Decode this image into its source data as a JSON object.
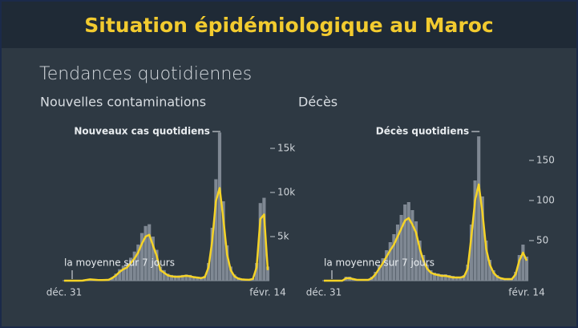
{
  "header": {
    "title": "Situation épidémiologique au Maroc"
  },
  "subtitle": "Tendances quotidiennes",
  "chart_data": [
    {
      "type": "bar-line",
      "title": "Nouvelles contaminations",
      "categories": [
        "déc. 31",
        null,
        null,
        null,
        null,
        null,
        null,
        null,
        null,
        null,
        null,
        null,
        null,
        null,
        null,
        null,
        null,
        null,
        null,
        null,
        null,
        null,
        null,
        null,
        null,
        null,
        null,
        null,
        null,
        null,
        null,
        null,
        null,
        null,
        null,
        null,
        null,
        null,
        null,
        null,
        null,
        null,
        null,
        null,
        null,
        null,
        null,
        null,
        null,
        null,
        null,
        null,
        null,
        null,
        null,
        "févr. 14"
      ],
      "series": [
        {
          "name": "Nouveaux cas quotidiens",
          "type": "bar",
          "color": "#7f8893",
          "values": [
            0,
            0,
            0,
            0,
            0,
            20,
            120,
            200,
            170,
            110,
            90,
            120,
            150,
            400,
            800,
            1300,
            1700,
            2000,
            2600,
            3300,
            4100,
            5400,
            6200,
            6400,
            5000,
            3500,
            1600,
            1200,
            800,
            650,
            600,
            600,
            650,
            700,
            650,
            520,
            450,
            400,
            550,
            2000,
            6000,
            11500,
            16800,
            9000,
            4000,
            1600,
            700,
            350,
            200,
            160,
            140,
            280,
            2000,
            8800,
            9400,
            1600
          ]
        },
        {
          "name": "la moyenne sur 7 jours",
          "type": "line",
          "color": "#f5d327",
          "values": [
            0,
            0,
            0,
            0,
            0,
            10,
            80,
            150,
            120,
            80,
            60,
            80,
            100,
            300,
            600,
            1000,
            1300,
            1500,
            2000,
            2500,
            3200,
            4200,
            5000,
            5200,
            4000,
            2800,
            1200,
            900,
            600,
            500,
            450,
            450,
            500,
            550,
            500,
            400,
            350,
            300,
            400,
            1500,
            4500,
            9000,
            10500,
            7000,
            3000,
            1200,
            500,
            250,
            150,
            120,
            100,
            200,
            1500,
            7000,
            7500,
            1200
          ]
        }
      ],
      "ylim": [
        0,
        17000
      ],
      "yticks": [
        {
          "value": 5000,
          "label": "5k"
        },
        {
          "value": 10000,
          "label": "10k"
        },
        {
          "value": 15000,
          "label": "15k"
        }
      ]
    },
    {
      "type": "bar-line",
      "title": "Décès",
      "categories": [
        "déc. 31",
        null,
        null,
        null,
        null,
        null,
        null,
        null,
        null,
        null,
        null,
        null,
        null,
        null,
        null,
        null,
        null,
        null,
        null,
        null,
        null,
        null,
        null,
        null,
        null,
        null,
        null,
        null,
        null,
        null,
        null,
        null,
        null,
        null,
        null,
        null,
        null,
        null,
        null,
        null,
        null,
        null,
        null,
        null,
        null,
        null,
        null,
        null,
        null,
        null,
        null,
        null,
        null,
        null,
        null,
        "févr. 14"
      ],
      "series": [
        {
          "name": "Décès quotidiens",
          "type": "bar",
          "color": "#7f8893",
          "values": [
            0,
            0,
            0,
            0,
            0,
            1,
            5,
            5,
            3,
            2,
            2,
            2,
            2,
            5,
            11,
            19,
            28,
            38,
            48,
            58,
            70,
            82,
            95,
            98,
            88,
            74,
            50,
            32,
            20,
            13,
            10,
            9,
            8,
            8,
            7,
            6,
            5,
            5,
            7,
            20,
            70,
            125,
            180,
            105,
            50,
            26,
            13,
            7,
            4,
            3,
            3,
            3,
            11,
            32,
            45,
            30
          ]
        },
        {
          "name": "la moyenne sur 7 jours",
          "type": "line",
          "color": "#f5d327",
          "values": [
            0,
            0,
            0,
            0,
            0,
            0,
            3,
            3,
            2,
            1,
            1,
            1,
            1,
            3,
            8,
            15,
            22,
            30,
            38,
            45,
            55,
            65,
            75,
            78,
            70,
            60,
            40,
            25,
            15,
            10,
            8,
            7,
            6,
            6,
            5,
            4,
            4,
            4,
            5,
            15,
            55,
            100,
            120,
            85,
            40,
            20,
            10,
            5,
            3,
            2,
            2,
            2,
            8,
            25,
            35,
            25
          ]
        }
      ],
      "ylim": [
        0,
        185
      ],
      "yticks": [
        50,
        100,
        150
      ]
    }
  ]
}
